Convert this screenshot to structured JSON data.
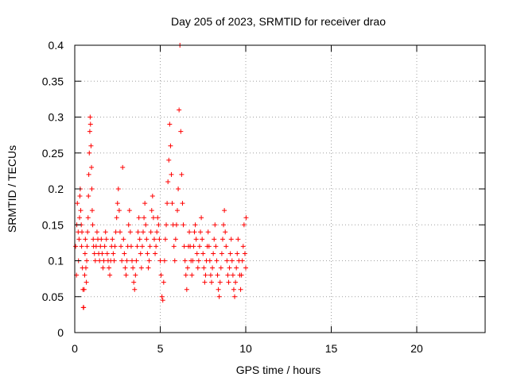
{
  "chart_data": {
    "type": "scatter",
    "title": "Day 205 of 2023, SRMTID for receiver drao",
    "xlabel": "GPS time / hours",
    "ylabel": "SRMTID / TECUs",
    "xlim": [
      0,
      24
    ],
    "ylim": [
      0,
      0.4
    ],
    "xticks": [
      0,
      5,
      10,
      15,
      20
    ],
    "xtick_labels": [
      "0",
      "5",
      "10",
      "15",
      "20"
    ],
    "yticks": [
      0,
      0.05,
      0.1,
      0.15,
      0.2,
      0.25,
      0.3,
      0.35,
      0.4
    ],
    "ytick_labels": [
      "0",
      "0.05",
      "0.1",
      "0.15",
      "0.2",
      "0.25",
      "0.3",
      "0.35",
      "0.4"
    ],
    "grid": true,
    "marker": "plus",
    "color": "#ff0000",
    "series": [
      {
        "name": "drao",
        "points": [
          [
            0.05,
            0.12
          ],
          [
            0.1,
            0.08
          ],
          [
            0.12,
            0.15
          ],
          [
            0.15,
            0.18
          ],
          [
            0.2,
            0.14
          ],
          [
            0.22,
            0.1
          ],
          [
            0.25,
            0.13
          ],
          [
            0.28,
            0.16
          ],
          [
            0.3,
            0.19
          ],
          [
            0.32,
            0.2
          ],
          [
            0.35,
            0.17
          ],
          [
            0.38,
            0.15
          ],
          [
            0.4,
            0.12
          ],
          [
            0.42,
            0.14
          ],
          [
            0.45,
            0.09
          ],
          [
            0.48,
            0.06
          ],
          [
            0.5,
            0.035
          ],
          [
            0.52,
            0.035
          ],
          [
            0.55,
            0.06
          ],
          [
            0.58,
            0.08
          ],
          [
            0.6,
            0.11
          ],
          [
            0.62,
            0.13
          ],
          [
            0.65,
            0.09
          ],
          [
            0.68,
            0.07
          ],
          [
            0.7,
            0.1
          ],
          [
            0.72,
            0.12
          ],
          [
            0.75,
            0.14
          ],
          [
            0.78,
            0.16
          ],
          [
            0.8,
            0.19
          ],
          [
            0.82,
            0.22
          ],
          [
            0.85,
            0.25
          ],
          [
            0.88,
            0.28
          ],
          [
            0.9,
            0.3
          ],
          [
            0.92,
            0.29
          ],
          [
            0.95,
            0.26
          ],
          [
            0.98,
            0.23
          ],
          [
            1.0,
            0.2
          ],
          [
            1.02,
            0.17
          ],
          [
            1.05,
            0.15
          ],
          [
            1.08,
            0.13
          ],
          [
            1.1,
            0.12
          ],
          [
            1.15,
            0.11
          ],
          [
            1.2,
            0.1
          ],
          [
            1.25,
            0.12
          ],
          [
            1.3,
            0.14
          ],
          [
            1.35,
            0.13
          ],
          [
            1.4,
            0.11
          ],
          [
            1.45,
            0.1
          ],
          [
            1.5,
            0.12
          ],
          [
            1.55,
            0.13
          ],
          [
            1.6,
            0.11
          ],
          [
            1.65,
            0.09
          ],
          [
            1.7,
            0.1
          ],
          [
            1.75,
            0.12
          ],
          [
            1.8,
            0.14
          ],
          [
            1.85,
            0.13
          ],
          [
            1.9,
            0.11
          ],
          [
            1.95,
            0.1
          ],
          [
            2.0,
            0.09
          ],
          [
            2.05,
            0.08
          ],
          [
            2.1,
            0.1
          ],
          [
            2.15,
            0.12
          ],
          [
            2.2,
            0.13
          ],
          [
            2.25,
            0.11
          ],
          [
            2.3,
            0.1
          ],
          [
            2.35,
            0.12
          ],
          [
            2.4,
            0.14
          ],
          [
            2.45,
            0.16
          ],
          [
            2.5,
            0.18
          ],
          [
            2.55,
            0.2
          ],
          [
            2.6,
            0.17
          ],
          [
            2.65,
            0.14
          ],
          [
            2.7,
            0.12
          ],
          [
            2.75,
            0.1
          ],
          [
            2.8,
            0.23
          ],
          [
            2.85,
            0.13
          ],
          [
            2.9,
            0.11
          ],
          [
            2.95,
            0.09
          ],
          [
            3.0,
            0.08
          ],
          [
            3.05,
            0.1
          ],
          [
            3.1,
            0.12
          ],
          [
            3.15,
            0.15
          ],
          [
            3.2,
            0.17
          ],
          [
            3.25,
            0.14
          ],
          [
            3.3,
            0.12
          ],
          [
            3.35,
            0.1
          ],
          [
            3.4,
            0.09
          ],
          [
            3.45,
            0.07
          ],
          [
            3.5,
            0.06
          ],
          [
            3.55,
            0.08
          ],
          [
            3.6,
            0.1
          ],
          [
            3.65,
            0.12
          ],
          [
            3.7,
            0.14
          ],
          [
            3.75,
            0.16
          ],
          [
            3.8,
            0.13
          ],
          [
            3.85,
            0.11
          ],
          [
            3.9,
            0.09
          ],
          [
            3.95,
            0.12
          ],
          [
            4.0,
            0.14
          ],
          [
            4.05,
            0.16
          ],
          [
            4.1,
            0.18
          ],
          [
            4.15,
            0.15
          ],
          [
            4.2,
            0.13
          ],
          [
            4.25,
            0.11
          ],
          [
            4.3,
            0.09
          ],
          [
            4.35,
            0.1
          ],
          [
            4.4,
            0.12
          ],
          [
            4.45,
            0.14
          ],
          [
            4.5,
            0.17
          ],
          [
            4.55,
            0.19
          ],
          [
            4.6,
            0.16
          ],
          [
            4.65,
            0.13
          ],
          [
            4.7,
            0.11
          ],
          [
            4.75,
            0.12
          ],
          [
            4.8,
            0.14
          ],
          [
            4.85,
            0.16
          ],
          [
            4.9,
            0.15
          ],
          [
            4.95,
            0.13
          ],
          [
            5.0,
            0.1
          ],
          [
            5.05,
            0.08
          ],
          [
            5.1,
            0.05
          ],
          [
            5.15,
            0.045
          ],
          [
            5.2,
            0.07
          ],
          [
            5.25,
            0.1
          ],
          [
            5.3,
            0.13
          ],
          [
            5.35,
            0.15
          ],
          [
            5.4,
            0.18
          ],
          [
            5.45,
            0.21
          ],
          [
            5.5,
            0.24
          ],
          [
            5.55,
            0.29
          ],
          [
            5.6,
            0.26
          ],
          [
            5.65,
            0.22
          ],
          [
            5.7,
            0.18
          ],
          [
            5.75,
            0.15
          ],
          [
            5.8,
            0.12
          ],
          [
            5.85,
            0.1
          ],
          [
            5.9,
            0.13
          ],
          [
            5.95,
            0.15
          ],
          [
            6.0,
            0.17
          ],
          [
            6.05,
            0.2
          ],
          [
            6.1,
            0.31
          ],
          [
            6.15,
            0.4
          ],
          [
            6.2,
            0.28
          ],
          [
            6.25,
            0.22
          ],
          [
            6.3,
            0.18
          ],
          [
            6.35,
            0.15
          ],
          [
            6.4,
            0.12
          ],
          [
            6.45,
            0.1
          ],
          [
            6.5,
            0.08
          ],
          [
            6.55,
            0.06
          ],
          [
            6.6,
            0.09
          ],
          [
            6.65,
            0.12
          ],
          [
            6.7,
            0.14
          ],
          [
            6.75,
            0.12
          ],
          [
            6.8,
            0.1
          ],
          [
            6.85,
            0.08
          ],
          [
            6.9,
            0.1
          ],
          [
            6.95,
            0.12
          ],
          [
            7.0,
            0.14
          ],
          [
            7.05,
            0.15
          ],
          [
            7.1,
            0.13
          ],
          [
            7.15,
            0.11
          ],
          [
            7.2,
            0.09
          ],
          [
            7.25,
            0.1
          ],
          [
            7.3,
            0.12
          ],
          [
            7.35,
            0.14
          ],
          [
            7.4,
            0.16
          ],
          [
            7.45,
            0.13
          ],
          [
            7.5,
            0.11
          ],
          [
            7.55,
            0.09
          ],
          [
            7.6,
            0.07
          ],
          [
            7.65,
            0.08
          ],
          [
            7.7,
            0.1
          ],
          [
            7.75,
            0.12
          ],
          [
            7.8,
            0.14
          ],
          [
            7.85,
            0.12
          ],
          [
            7.9,
            0.1
          ],
          [
            7.95,
            0.08
          ],
          [
            8.0,
            0.07
          ],
          [
            8.05,
            0.09
          ],
          [
            8.1,
            0.11
          ],
          [
            8.15,
            0.13
          ],
          [
            8.2,
            0.15
          ],
          [
            8.25,
            0.12
          ],
          [
            8.3,
            0.1
          ],
          [
            8.35,
            0.08
          ],
          [
            8.4,
            0.06
          ],
          [
            8.45,
            0.05
          ],
          [
            8.5,
            0.07
          ],
          [
            8.55,
            0.09
          ],
          [
            8.6,
            0.11
          ],
          [
            8.65,
            0.13
          ],
          [
            8.7,
            0.15
          ],
          [
            8.75,
            0.17
          ],
          [
            8.8,
            0.14
          ],
          [
            8.85,
            0.12
          ],
          [
            8.9,
            0.1
          ],
          [
            8.95,
            0.08
          ],
          [
            9.0,
            0.07
          ],
          [
            9.05,
            0.09
          ],
          [
            9.1,
            0.11
          ],
          [
            9.15,
            0.13
          ],
          [
            9.2,
            0.1
          ],
          [
            9.25,
            0.08
          ],
          [
            9.3,
            0.06
          ],
          [
            9.35,
            0.05
          ],
          [
            9.4,
            0.07
          ],
          [
            9.45,
            0.09
          ],
          [
            9.5,
            0.11
          ],
          [
            9.55,
            0.13
          ],
          [
            9.6,
            0.1
          ],
          [
            9.65,
            0.08
          ],
          [
            9.7,
            0.06
          ],
          [
            9.75,
            0.08
          ],
          [
            9.8,
            0.1
          ],
          [
            9.85,
            0.12
          ],
          [
            9.9,
            0.15
          ],
          [
            9.95,
            0.11
          ],
          [
            10.0,
            0.09
          ],
          [
            10.02,
            0.16
          ]
        ]
      }
    ]
  }
}
